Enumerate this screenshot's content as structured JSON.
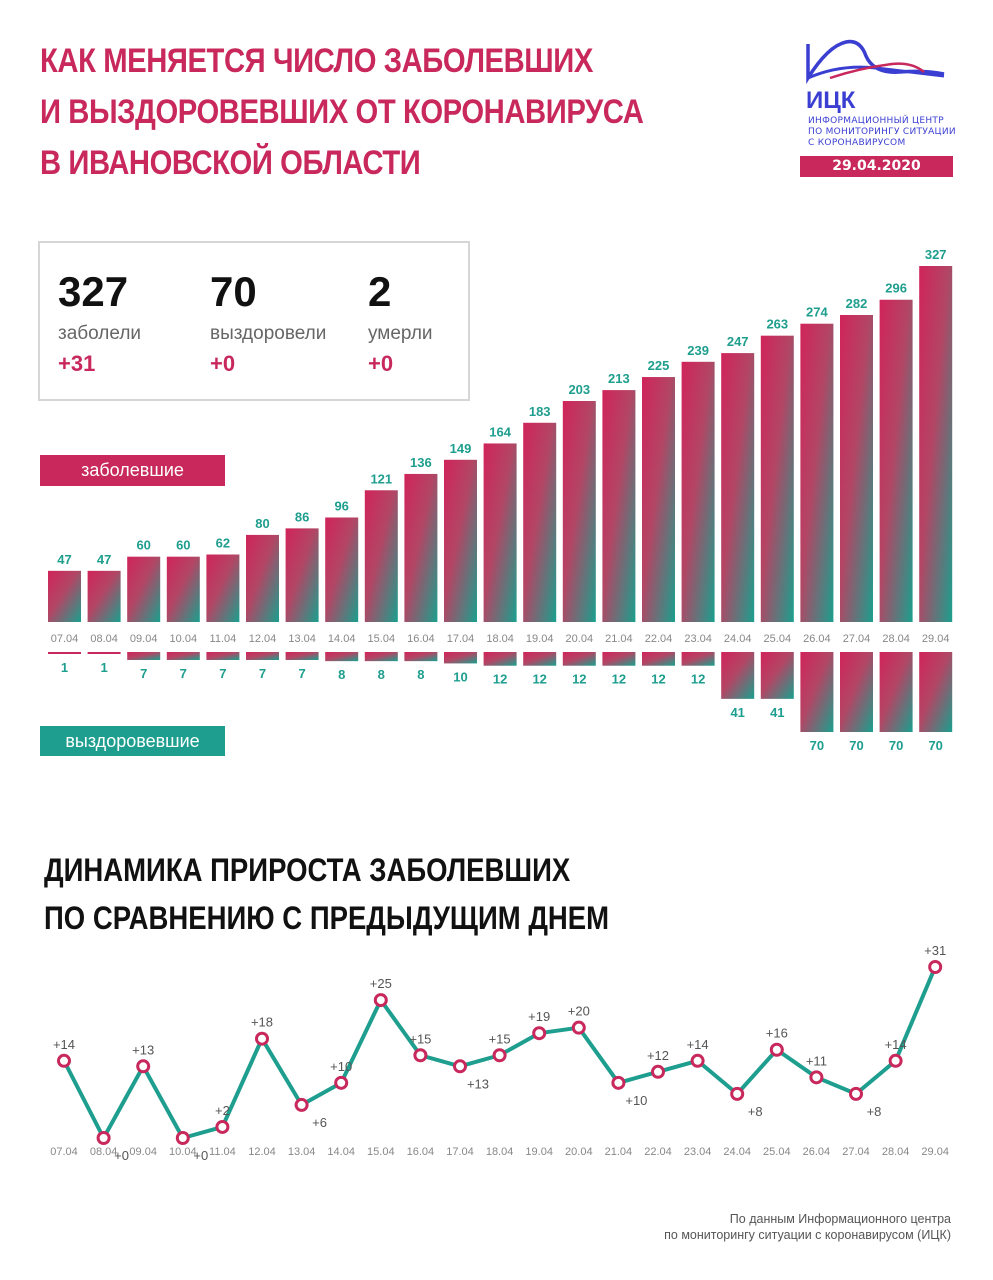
{
  "header": {
    "title_lines": [
      "КАК МЕНЯЕТСЯ ЧИСЛО ЗАБОЛЕВШИХ",
      "И ВЫЗДОРОВЕВШИХ ОТ КОРОНАВИРУСА",
      "В ИВАНОВСКОЙ ОБЛАСТИ"
    ],
    "logo_name": "ИЦК",
    "logo_text_lines": [
      "ИНФОРМАЦИОННЫЙ ЦЕНТР",
      "ПО МОНИТОРИНГУ СИТУАЦИИ",
      "С КОРОНАВИРУСОМ"
    ],
    "date": "29.04.2020"
  },
  "summary": {
    "sick": {
      "value": "327",
      "label": "заболели",
      "delta": "+31"
    },
    "recovered": {
      "value": "70",
      "label": "выздоровели",
      "delta": "+0"
    },
    "died": {
      "value": "2",
      "label": "умерли",
      "delta": "+0"
    }
  },
  "labels": {
    "sick": "заболевшие",
    "recovered": "выздоровевшие"
  },
  "colors": {
    "accent": "#c8285c",
    "teal": "#1e9e8e",
    "brand_blue": "#3b3fd1"
  },
  "subtitle_lines": [
    "ДИНАМИКА ПРИРОСТА ЗАБОЛЕВШИХ",
    "ПО СРАВНЕНИЮ С ПРЕДЫДУЩИМ ДНЕМ"
  ],
  "source_lines": [
    "По данным Информационного центра",
    "по мониторингу ситуации с коронавирусом (ИЦК)"
  ],
  "chart_data": [
    {
      "type": "bar",
      "categories": [
        "07.04",
        "08.04",
        "09.04",
        "10.04",
        "11.04",
        "12.04",
        "13.04",
        "14.04",
        "15.04",
        "16.04",
        "17.04",
        "18.04",
        "19.04",
        "20.04",
        "21.04",
        "22.04",
        "23.04",
        "24.04",
        "25.04",
        "26.04",
        "27.04",
        "28.04",
        "29.04"
      ],
      "series": [
        {
          "name": "заболевшие",
          "values": [
            47,
            47,
            60,
            60,
            62,
            80,
            86,
            96,
            121,
            136,
            149,
            164,
            183,
            203,
            213,
            225,
            239,
            247,
            263,
            274,
            282,
            296,
            327
          ]
        },
        {
          "name": "выздоровевшие",
          "values": [
            1,
            1,
            7,
            7,
            7,
            7,
            7,
            8,
            8,
            8,
            10,
            12,
            12,
            12,
            12,
            12,
            12,
            41,
            41,
            70,
            70,
            70,
            70
          ]
        }
      ]
    },
    {
      "type": "line",
      "categories": [
        "07.04",
        "08.04",
        "09.04",
        "10.04",
        "11.04",
        "12.04",
        "13.04",
        "14.04",
        "15.04",
        "16.04",
        "17.04",
        "18.04",
        "19.04",
        "20.04",
        "21.04",
        "22.04",
        "23.04",
        "24.04",
        "25.04",
        "26.04",
        "27.04",
        "28.04",
        "29.04"
      ],
      "values": [
        14,
        0,
        13,
        0,
        2,
        18,
        6,
        10,
        25,
        15,
        13,
        15,
        19,
        20,
        10,
        12,
        14,
        8,
        16,
        11,
        8,
        14,
        31
      ],
      "labels": [
        "+14",
        "+0",
        "+13",
        "+0",
        "+2",
        "+18",
        "+6",
        "+10",
        "+25",
        "+15",
        "+13",
        "+15",
        "+19",
        "+20",
        "+10",
        "+12",
        "+14",
        "+8",
        "+16",
        "+11",
        "+8",
        "+14",
        "+31"
      ]
    }
  ]
}
